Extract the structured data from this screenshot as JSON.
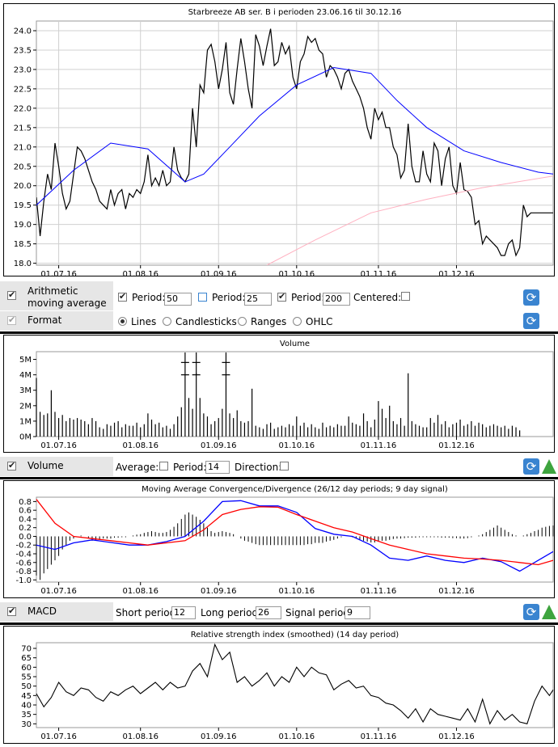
{
  "colors": {
    "price": "#000000",
    "ma50": "#0000ff",
    "ma200": "#ffb0c0",
    "macd": "#0000ff",
    "signal": "#ff0000",
    "accent_refresh": "#3a84d0",
    "accent_up": "#3ea43e"
  },
  "chart_data": [
    {
      "type": "line",
      "title": "Starbreeze AB ser. B i perioden 23.06.16 til 30.12.16",
      "x_ticks": [
        "01.07.16",
        "01.08.16",
        "01.09.16",
        "01.10.16",
        "01.11.16",
        "01.12.16"
      ],
      "y_ticks": [
        "24.0",
        "23.5",
        "23.0",
        "22.5",
        "22.0",
        "21.5",
        "21.0",
        "20.5",
        "20.0",
        "19.5",
        "19.0",
        "18.5",
        "18.0"
      ],
      "ylim": [
        17.95,
        24.25
      ],
      "grid": true,
      "series": [
        {
          "key": "price",
          "x": [
            0,
            1,
            2,
            3,
            4,
            5,
            6,
            7,
            8,
            9,
            10,
            11,
            12,
            13,
            14,
            15,
            16,
            17,
            18,
            19,
            20,
            21,
            22,
            23,
            24,
            25,
            26,
            27,
            28,
            29,
            30,
            31,
            32,
            33,
            34,
            35,
            36,
            37,
            38,
            39,
            40,
            41,
            42,
            43,
            44,
            45,
            46,
            47,
            48,
            49,
            50,
            51,
            52,
            53,
            54,
            55,
            56,
            57,
            58,
            59,
            60,
            61,
            62,
            63,
            64,
            65,
            66,
            67,
            68,
            69,
            70,
            71,
            72,
            73,
            74,
            75,
            76,
            77,
            78,
            79,
            80,
            81,
            82,
            83,
            84,
            85,
            86,
            87,
            88,
            89,
            90,
            91,
            92,
            93,
            94,
            95,
            96,
            97,
            98,
            99,
            100,
            101,
            102,
            103,
            104,
            105,
            106,
            107,
            108,
            109,
            110,
            111,
            112,
            113,
            114,
            115,
            116,
            117,
            118,
            119,
            120,
            121,
            122,
            123,
            124,
            125,
            126,
            127,
            128,
            129,
            130,
            131,
            132,
            133,
            134,
            135,
            136,
            137,
            138,
            139
          ],
          "values": [
            19.7,
            18.7,
            19.6,
            20.3,
            19.9,
            21.1,
            20.5,
            19.8,
            19.4,
            19.6,
            20.3,
            21.0,
            20.9,
            20.7,
            20.4,
            20.1,
            19.9,
            19.6,
            19.5,
            19.4,
            19.9,
            19.5,
            19.8,
            19.9,
            19.4,
            19.8,
            19.7,
            19.9,
            19.8,
            20.1,
            20.8,
            20.0,
            20.2,
            20.0,
            20.4,
            20.0,
            20.1,
            21.0,
            20.4,
            20.2,
            20.1,
            20.3,
            22.0,
            21.0,
            22.6,
            22.4,
            23.5,
            23.65,
            23.2,
            22.5,
            23.0,
            23.7,
            22.4,
            22.1,
            23.0,
            23.8,
            23.2,
            22.5,
            22.0,
            23.9,
            23.6,
            23.1,
            23.6,
            24.05,
            23.1,
            23.2,
            23.7,
            23.4,
            23.6,
            22.8,
            22.5,
            23.2,
            23.4,
            23.85,
            23.7,
            23.8,
            23.5,
            23.4,
            22.8,
            23.1,
            23.0,
            22.8,
            22.5,
            22.9,
            23.0,
            22.7,
            22.5,
            22.3,
            22.0,
            21.5,
            21.2,
            22.0,
            21.7,
            21.9,
            21.5,
            21.5,
            21.0,
            20.8,
            20.2,
            20.4,
            21.6,
            20.5,
            20.1,
            20.1,
            20.9,
            20.3,
            20.1,
            21.1,
            20.9,
            20.0,
            20.7,
            21.0,
            20.0,
            19.8,
            20.6,
            19.9,
            19.85,
            19.7,
            19.0,
            19.1,
            18.5,
            18.7,
            18.6,
            18.5,
            18.4,
            18.2,
            18.2,
            18.5,
            18.6,
            18.2,
            18.4,
            19.5,
            19.2,
            19.3,
            19.3,
            19.3,
            19.3,
            19.3,
            19.3,
            19.3
          ]
        },
        {
          "key": "ma50",
          "x": [
            0,
            10,
            20,
            30,
            40,
            45,
            52,
            60,
            70,
            80,
            90,
            97,
            105,
            115,
            125,
            135,
            139
          ],
          "values": [
            19.5,
            20.4,
            21.1,
            20.95,
            20.1,
            20.3,
            21.0,
            21.8,
            22.6,
            23.05,
            22.9,
            22.2,
            21.5,
            20.9,
            20.6,
            20.35,
            20.3
          ]
        },
        {
          "key": "ma200",
          "x": [
            62,
            75,
            90,
            105,
            120,
            139
          ],
          "values": [
            17.95,
            18.6,
            19.3,
            19.65,
            19.95,
            20.25
          ]
        }
      ]
    },
    {
      "type": "bar",
      "title": "Volume",
      "y_ticks": [
        "5M",
        "4M",
        "3M",
        "2M",
        "1M",
        "0M"
      ],
      "ylim": [
        0,
        5.5
      ],
      "x_ticks": [
        "01.07.16",
        "01.08.16",
        "01.09.16",
        "01.10.16",
        "01.11.16",
        "01.12.16"
      ],
      "values": [
        3.8,
        1.6,
        1.4,
        1.5,
        3.0,
        1.6,
        1.2,
        1.4,
        1.0,
        1.2,
        1.1,
        1.2,
        1.1,
        1.0,
        0.8,
        1.2,
        1.0,
        0.6,
        0.5,
        0.8,
        0.7,
        0.9,
        1.0,
        0.6,
        0.8,
        0.7,
        0.7,
        0.9,
        0.6,
        0.8,
        1.5,
        1.1,
        0.8,
        0.9,
        0.6,
        0.7,
        0.5,
        0.8,
        1.3,
        1.9,
        4.0,
        2.5,
        1.8,
        4.1,
        2.5,
        1.5,
        1.3,
        0.8,
        1.0,
        1.2,
        1.8,
        4.0,
        1.5,
        1.2,
        1.7,
        1.0,
        0.9,
        1.0,
        3.1,
        0.7,
        0.6,
        0.5,
        0.8,
        0.9,
        0.5,
        0.6,
        0.7,
        0.6,
        0.8,
        0.7,
        1.3,
        0.7,
        0.9,
        0.6,
        0.8,
        0.6,
        0.5,
        0.9,
        0.6,
        0.7,
        0.6,
        0.8,
        0.7,
        0.7,
        1.3,
        0.9,
        0.8,
        0.7,
        1.5,
        1.0,
        0.6,
        1.1,
        2.3,
        1.8,
        1.2,
        2.0,
        1.0,
        0.8,
        1.2,
        0.7,
        4.1,
        1.0,
        0.8,
        0.7,
        0.6,
        0.6,
        1.2,
        0.9,
        1.4,
        0.8,
        1.0,
        0.6,
        0.8,
        0.9,
        1.1,
        0.7,
        0.8,
        1.0,
        0.7,
        0.9,
        0.8,
        0.6,
        0.7,
        0.8,
        0.7,
        0.6,
        0.7,
        0.5,
        0.7,
        0.6,
        0.4
      ],
      "spikes": [
        {
          "index": 40,
          "value": "5.8"
        },
        {
          "index": 43,
          "value": "5.8"
        },
        {
          "index": 51,
          "value": "5.8"
        }
      ]
    },
    {
      "type": "line",
      "title": "Moving Average Convergence/Divergence (26/12 day periods; 9 day signal)",
      "y_ticks": [
        "0.8",
        "0.6",
        "0.4",
        "0.2",
        "0.0",
        "-0.2",
        "-0.4",
        "-0.6",
        "-0.8",
        "-1.0"
      ],
      "ylim": [
        -1.05,
        0.9
      ],
      "x_ticks": [
        "01.07.16",
        "01.08.16",
        "01.09.16",
        "01.10.16",
        "01.11.16",
        "01.12.16"
      ],
      "series": [
        {
          "key": "macd",
          "x": [
            0,
            5,
            10,
            15,
            20,
            25,
            30,
            35,
            40,
            45,
            50,
            55,
            60,
            65,
            70,
            75,
            80,
            85,
            90,
            95,
            100,
            105,
            110,
            115,
            120,
            125,
            130,
            135,
            139
          ],
          "values": [
            -0.2,
            -0.3,
            -0.15,
            -0.08,
            -0.14,
            -0.2,
            -0.2,
            -0.12,
            0.0,
            0.35,
            0.8,
            0.82,
            0.7,
            0.7,
            0.55,
            0.18,
            0.05,
            0.0,
            -0.2,
            -0.5,
            -0.55,
            -0.45,
            -0.55,
            -0.6,
            -0.5,
            -0.58,
            -0.8,
            -0.55,
            -0.35
          ]
        },
        {
          "key": "signal",
          "x": [
            0,
            5,
            10,
            15,
            20,
            25,
            30,
            35,
            40,
            45,
            50,
            55,
            60,
            65,
            70,
            75,
            80,
            85,
            90,
            95,
            100,
            105,
            110,
            115,
            120,
            125,
            130,
            135,
            139
          ],
          "values": [
            0.85,
            0.3,
            0.0,
            -0.05,
            -0.1,
            -0.15,
            -0.2,
            -0.15,
            -0.1,
            0.15,
            0.5,
            0.62,
            0.68,
            0.67,
            0.5,
            0.35,
            0.2,
            0.1,
            -0.05,
            -0.2,
            -0.3,
            -0.4,
            -0.45,
            -0.5,
            -0.52,
            -0.55,
            -0.6,
            -0.65,
            -0.55
          ]
        }
      ],
      "histogram": [
        -0.9,
        -1.0,
        -0.85,
        -0.75,
        -0.65,
        -0.55,
        -0.45,
        -0.3,
        -0.2,
        -0.1,
        -0.05,
        0.0,
        0.02,
        0.0,
        -0.05,
        -0.1,
        -0.1,
        -0.08,
        -0.05,
        -0.05,
        -0.05,
        -0.03,
        -0.03,
        -0.02,
        -0.02,
        0.0,
        0.02,
        0.04,
        0.05,
        0.08,
        0.1,
        0.12,
        0.1,
        0.08,
        0.08,
        0.1,
        0.15,
        0.22,
        0.3,
        0.4,
        0.5,
        0.55,
        0.5,
        0.45,
        0.38,
        0.3,
        0.2,
        0.12,
        0.08,
        0.1,
        0.12,
        0.1,
        0.08,
        0.05,
        0.0,
        -0.05,
        -0.1,
        -0.12,
        -0.15,
        -0.18,
        -0.2,
        -0.2,
        -0.2,
        -0.2,
        -0.2,
        -0.2,
        -0.2,
        -0.2,
        -0.2,
        -0.2,
        -0.2,
        -0.2,
        -0.2,
        -0.18,
        -0.18,
        -0.15,
        -0.15,
        -0.15,
        -0.12,
        -0.1,
        -0.08,
        -0.05,
        -0.02,
        0.0,
        0.0,
        -0.02,
        -0.05,
        -0.08,
        -0.1,
        -0.12,
        -0.14,
        -0.14,
        -0.12,
        -0.1,
        -0.1,
        -0.08,
        -0.06,
        -0.05,
        -0.05,
        -0.04,
        -0.03,
        -0.03,
        -0.03,
        -0.02,
        -0.02,
        -0.02,
        -0.02,
        -0.02,
        -0.02,
        -0.03,
        -0.03,
        -0.03,
        -0.04,
        -0.04,
        -0.05,
        -0.05,
        -0.04,
        -0.02,
        0.0,
        0.02,
        0.05,
        0.1,
        0.15,
        0.2,
        0.25,
        0.2,
        0.15,
        0.1,
        0.05,
        0.02,
        0.0,
        0.02,
        0.05,
        0.08,
        0.12,
        0.15,
        0.2,
        0.22,
        0.24,
        0.25
      ]
    },
    {
      "type": "line",
      "title": "Relative strength index (smoothed) (14 day period)",
      "y_ticks": [
        "70",
        "65",
        "60",
        "55",
        "50",
        "45",
        "40",
        "35",
        "30"
      ],
      "ylim": [
        28,
        73
      ],
      "x_ticks": [
        "01.07.16",
        "01.08.16",
        "01.09.16",
        "01.10.16",
        "01.11.16",
        "01.12.16"
      ],
      "series": [
        {
          "key": "rsi",
          "x": [
            0,
            2,
            4,
            6,
            8,
            10,
            12,
            14,
            16,
            18,
            20,
            22,
            24,
            26,
            28,
            30,
            32,
            34,
            36,
            38,
            40,
            42,
            44,
            46,
            48,
            50,
            52,
            54,
            56,
            58,
            60,
            62,
            64,
            66,
            68,
            70,
            72,
            74,
            76,
            78,
            80,
            82,
            84,
            86,
            88,
            90,
            92,
            94,
            96,
            98,
            100,
            102,
            104,
            106,
            108,
            110,
            112,
            114,
            116,
            118,
            120,
            122,
            124,
            126,
            128,
            130,
            132,
            134,
            136,
            138,
            139
          ],
          "values": [
            46,
            39,
            44,
            52,
            47,
            45,
            49,
            48,
            44,
            42,
            47,
            45,
            48,
            50,
            46,
            49,
            52,
            48,
            52,
            49,
            50,
            58,
            62,
            55,
            72,
            64,
            68,
            52,
            55,
            50,
            53,
            57,
            50,
            55,
            52,
            60,
            55,
            60,
            57,
            56,
            48,
            51,
            53,
            49,
            50,
            45,
            44,
            41,
            40,
            37,
            33,
            38,
            31,
            38,
            35,
            34,
            33,
            32,
            38,
            31,
            43,
            30,
            37,
            32,
            35,
            31,
            30,
            42,
            50,
            45,
            48
          ]
        }
      ]
    }
  ],
  "controls": {
    "sma": {
      "label": "Arithmetic moving average",
      "period_label": "Period:",
      "p1": "50",
      "p2": "25",
      "p3": "200",
      "centered_label": "Centered:"
    },
    "format": {
      "label": "Format",
      "opt_lines": "Lines",
      "opt_candles": "Candlesticks",
      "opt_ranges": "Ranges",
      "opt_ohlc": "OHLC"
    },
    "volume": {
      "label": "Volume",
      "average_label": "Average:",
      "period_label": "Period:",
      "period": "14",
      "direction_label": "Direction:"
    },
    "macd": {
      "label": "MACD",
      "short_label": "Short period:",
      "short": "12",
      "long_label": "Long period:",
      "long": "26",
      "signal_label": "Signal period:",
      "signal": "9"
    }
  }
}
